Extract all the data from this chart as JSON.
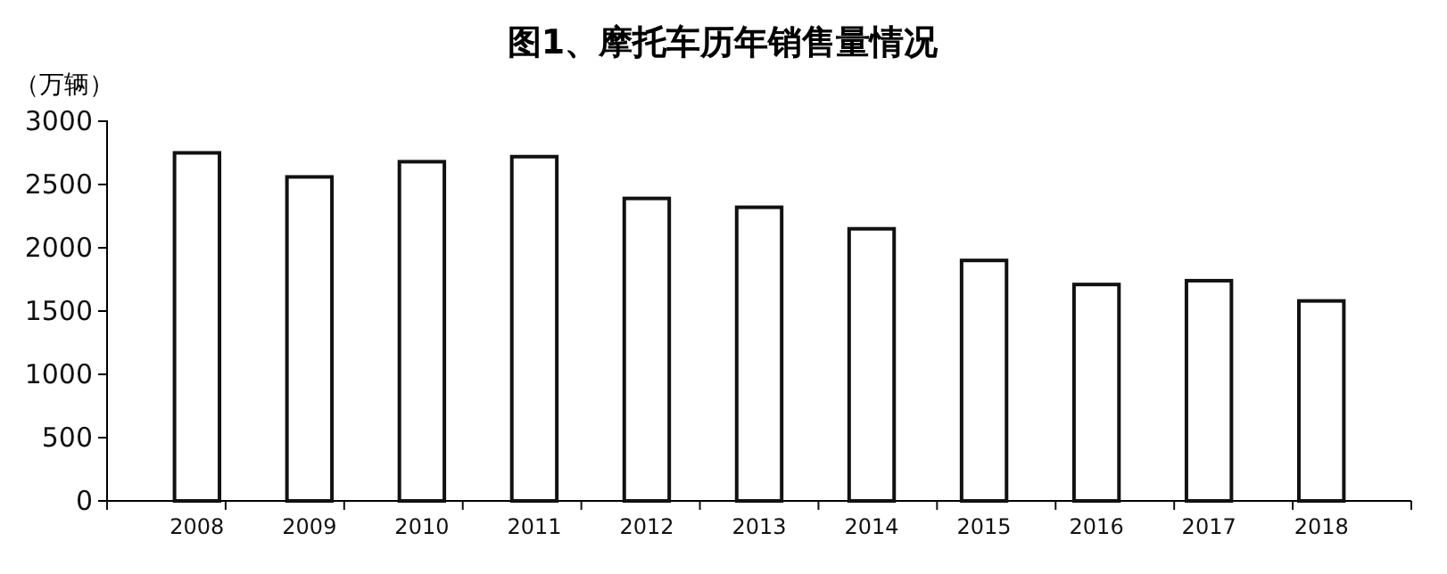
{
  "chart_data": {
    "type": "bar",
    "title": "图1、摩托车历年销售量情况",
    "ylabel": "（万辆）",
    "categories": [
      "2008",
      "2009",
      "2010",
      "2011",
      "2012",
      "2013",
      "2014",
      "2015",
      "2016",
      "2017",
      "2018"
    ],
    "values": [
      2750,
      2560,
      2680,
      2720,
      2390,
      2320,
      2150,
      1900,
      1710,
      1740,
      1580
    ],
    "color": "#ffffff",
    "ylim": [
      0,
      3000
    ],
    "yticks": [
      0,
      500,
      1000,
      1500,
      2000,
      2500,
      3000
    ],
    "grid": false
  }
}
